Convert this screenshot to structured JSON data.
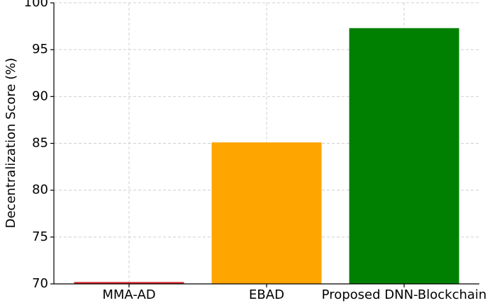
{
  "chart_data": {
    "type": "bar",
    "ylabel": "Decentralization Score (%)",
    "categories": [
      "MMA-AD",
      "EBAD",
      "Proposed DNN-Blockchain"
    ],
    "values": [
      70.2,
      85.1,
      97.3
    ],
    "colors": [
      "#d62728",
      "#ffa500",
      "#008000"
    ],
    "ylim": [
      70,
      100
    ],
    "yticks": [
      70,
      75,
      80,
      85,
      90,
      95,
      100
    ],
    "grid": true
  }
}
